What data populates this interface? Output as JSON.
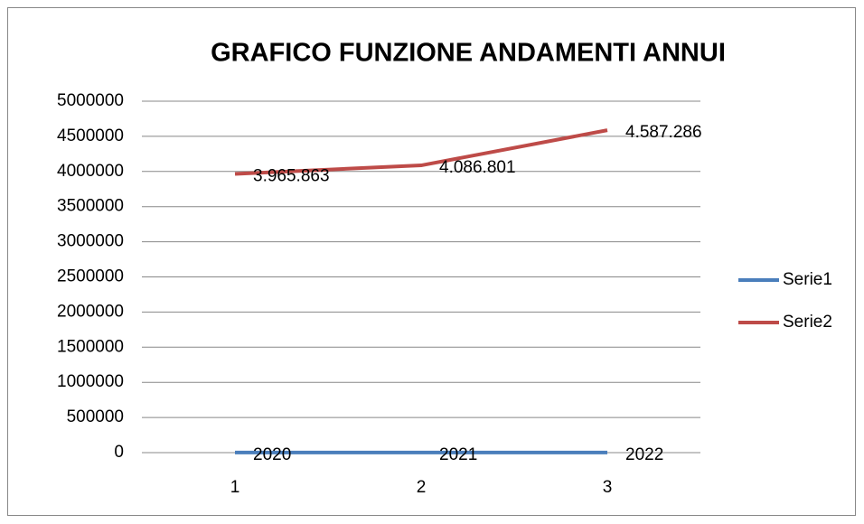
{
  "chart_data": {
    "type": "line",
    "title": "GRAFICO FUNZIONE ANDAMENTI ANNUI",
    "categories": [
      "1",
      "2",
      "3"
    ],
    "series": [
      {
        "name": "Serie1",
        "color": "#4a7ebb",
        "values": [
          2020,
          2021,
          2022
        ]
      },
      {
        "name": "Serie2",
        "color": "#be4b48",
        "values": [
          3965863,
          4086801,
          4587286
        ],
        "value_labels": [
          "3.965.863",
          "4.086.801",
          "4.587.286"
        ]
      }
    ],
    "ylim": [
      0,
      5000000
    ],
    "yticks": [
      0,
      500000,
      1000000,
      1500000,
      2000000,
      2500000,
      3000000,
      3500000,
      4000000,
      4500000,
      5000000
    ],
    "grid": true,
    "legend": "right"
  }
}
